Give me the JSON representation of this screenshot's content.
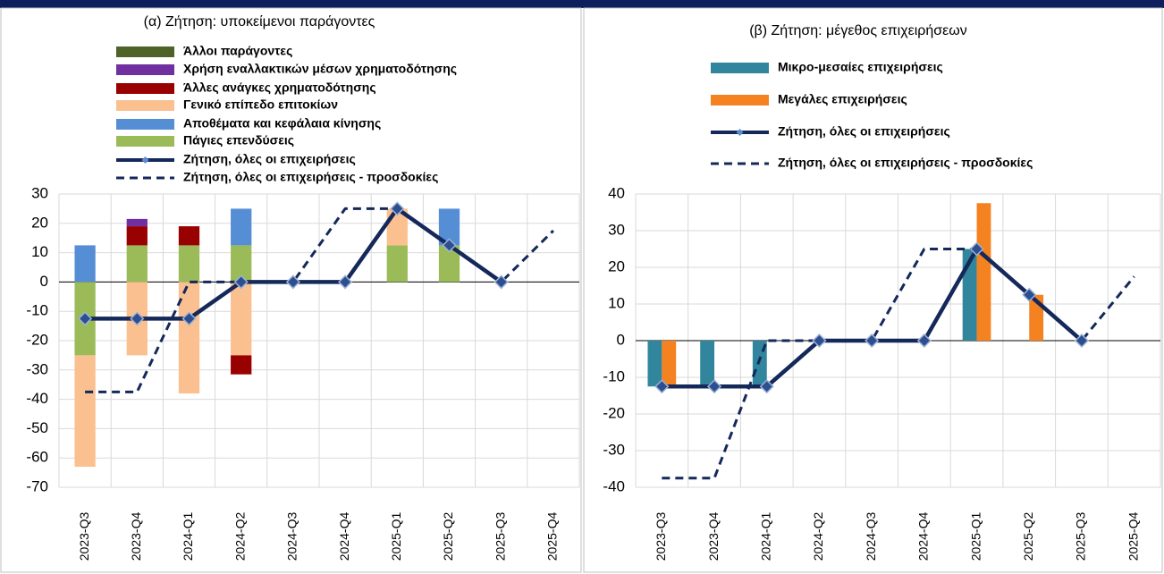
{
  "chart_data": [
    {
      "type": "bar",
      "stacked": true,
      "grid": true,
      "title": "(α) Ζήτηση: υποκείμενοι παράγοντες",
      "categories": [
        "2023-Q3",
        "2023-Q4",
        "2024-Q1",
        "2024-Q2",
        "2024-Q3",
        "2024-Q4",
        "2025-Q1",
        "2025-Q2",
        "2025-Q3",
        "2025-Q4"
      ],
      "ylim": [
        -70,
        30
      ],
      "yticks": [
        -70,
        -60,
        -50,
        -40,
        -30,
        -20,
        -10,
        0,
        10,
        20,
        30
      ],
      "series": [
        {
          "name": "Άλλοι παράγοντες",
          "type": "bar",
          "color": "#4f6228",
          "values": [
            0,
            0,
            0,
            0,
            0,
            0,
            0,
            0,
            0,
            0
          ]
        },
        {
          "name": "Χρήση εναλλακτικών μέσων χρηματοδότησης",
          "type": "bar",
          "color": "#7030a0",
          "values": [
            0,
            2.5,
            0,
            0,
            0,
            0,
            0,
            0,
            0,
            0
          ]
        },
        {
          "name": "Άλλες ανάγκες χρηματοδότησης",
          "type": "bar",
          "color": "#990000",
          "values": [
            0,
            6.5,
            6.5,
            -6.5,
            0,
            0,
            0,
            0,
            0,
            0
          ]
        },
        {
          "name": "Γενικό επίπεδο επιτοκίων",
          "type": "bar",
          "color": "#fac090",
          "values": [
            -38,
            -25,
            -38,
            -25,
            0,
            0,
            12.5,
            0,
            0,
            0
          ]
        },
        {
          "name": "Αποθέματα και κεφάλαια κίνησης",
          "type": "bar",
          "color": "#558ed5",
          "values": [
            12.5,
            0,
            0,
            12.5,
            0,
            0,
            0,
            12.5,
            0,
            0
          ]
        },
        {
          "name": "Πάγιες επενδύσεις",
          "type": "bar",
          "color": "#9bbb59",
          "values": [
            -25,
            12.5,
            12.5,
            12.5,
            0,
            0,
            12.5,
            12.5,
            0,
            0
          ]
        },
        {
          "name": "Ζήτηση, όλες οι επιχειρήσεις",
          "type": "line",
          "color": "#14285a",
          "values": [
            -12.5,
            -12.5,
            -12.5,
            0,
            0,
            0,
            25,
            12.5,
            0,
            null
          ]
        },
        {
          "name": "Ζήτηση, όλες οι επιχειρήσεις - προσδοκίες",
          "type": "line",
          "dash": true,
          "color": "#14285a",
          "values": [
            -37.5,
            -37.5,
            0,
            0,
            0,
            25,
            25,
            12.5,
            0,
            17.5
          ]
        }
      ]
    },
    {
      "type": "bar",
      "stacked": false,
      "grid": true,
      "title": "(β) Ζήτηση: μέγεθος επιχειρήσεων",
      "categories": [
        "2023-Q3",
        "2023-Q4",
        "2024-Q1",
        "2024-Q2",
        "2024-Q3",
        "2024-Q4",
        "2025-Q1",
        "2025-Q2",
        "2025-Q3",
        "2025-Q4"
      ],
      "ylim": [
        -40,
        40
      ],
      "yticks": [
        -40,
        -30,
        -20,
        -10,
        0,
        10,
        20,
        30,
        40
      ],
      "series": [
        {
          "name": "Μικρο-μεσαίες επιχειρήσεις",
          "type": "bar",
          "color": "#31859c",
          "values": [
            -12.5,
            -12.5,
            -12.5,
            0,
            0,
            0,
            25,
            0,
            0,
            null
          ]
        },
        {
          "name": "Μεγάλες επιχειρήσεις",
          "type": "bar",
          "color": "#f58220",
          "values": [
            -12.5,
            0,
            0,
            0,
            0,
            0,
            37.5,
            12.5,
            0,
            null
          ]
        },
        {
          "name": "Ζήτηση, όλες οι επιχειρήσεις",
          "type": "line",
          "color": "#14285a",
          "values": [
            -12.5,
            -12.5,
            -12.5,
            0,
            0,
            0,
            25,
            12.5,
            0,
            null
          ]
        },
        {
          "name": "Ζήτηση, όλες οι επιχειρήσεις - προσδοκίες",
          "type": "line",
          "dash": true,
          "color": "#14285a",
          "values": [
            -37.5,
            -37.5,
            0,
            0,
            0,
            25,
            25,
            12.5,
            0,
            17.5
          ]
        }
      ]
    }
  ]
}
